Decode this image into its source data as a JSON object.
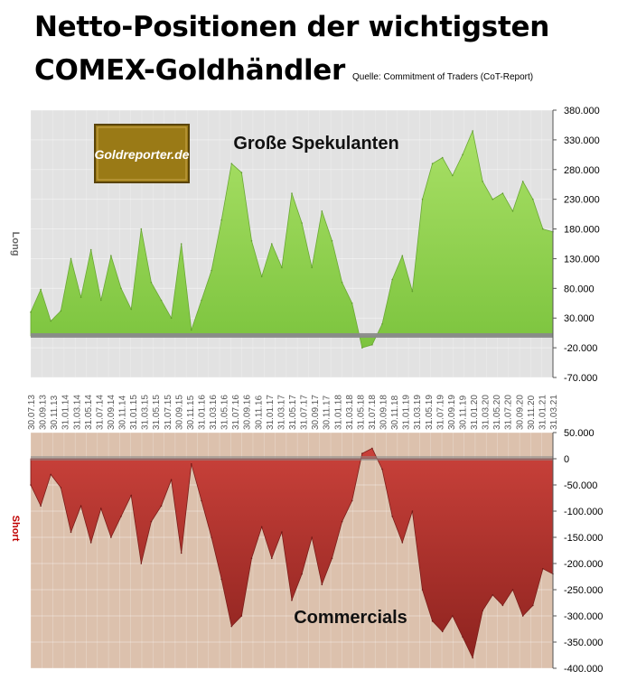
{
  "title_line1": "Netto-Positionen der wichtigsten",
  "title_line2": "COMEX-Goldhändler",
  "source": "Quelle: Commitment of Traders (CoT-Report)",
  "logo_text": "Goldreporter.de",
  "colors": {
    "top_background": "#e2e2e2",
    "bottom_background": "#dcc1ad",
    "long_fill": "#8fd14f",
    "short_fill": "#b8342f",
    "zero_band": "#8a8a8a",
    "logo_bg": "#9a7a16",
    "short_label": "#c00000",
    "long_label": "#666666"
  },
  "chart_data": [
    {
      "type": "area",
      "title": "Große Spekulanten",
      "ylabel": "Long",
      "ylim": [
        -70000,
        380000
      ],
      "yticks": [
        "380.000",
        "330.000",
        "280.000",
        "230.000",
        "180.000",
        "130.000",
        "80.000",
        "30.000",
        "-20.000",
        "-70.000"
      ],
      "x_tick_labels": [
        "30.07.13",
        "30.09.13",
        "30.11.13",
        "31.01.14",
        "31.03.14",
        "31.05.14",
        "31.07.14",
        "30.09.14",
        "30.11.14",
        "31.01.15",
        "31.03.15",
        "31.05.15",
        "31.07.15",
        "30.09.15",
        "30.11.15",
        "31.01.16",
        "31.03.16",
        "31.05.16",
        "31.07.16",
        "30.09.16",
        "30.11.16",
        "31.01.17",
        "31.03.17",
        "31.05.17",
        "31.07.17",
        "30.09.17",
        "30.11.17",
        "31.01.18",
        "31.03.18",
        "31.05.18",
        "31.07.18",
        "30.09.18",
        "30.11.18",
        "31.01.19",
        "31.03.19",
        "31.05.19",
        "31.07.19",
        "30.09.19",
        "30.11.19",
        "31.01.20",
        "31.03.20",
        "31.05.20",
        "31.07.20",
        "30.09.20",
        "30.11.20",
        "31.01.21",
        "31.03.21"
      ],
      "x": [
        "2013-07",
        "2013-09",
        "2013-10",
        "2013-12",
        "2014-02",
        "2014-03",
        "2014-05",
        "2014-06",
        "2014-08",
        "2014-10",
        "2014-11",
        "2015-01",
        "2015-03",
        "2015-05",
        "2015-07",
        "2015-09",
        "2015-10",
        "2015-12",
        "2016-02",
        "2016-04",
        "2016-05",
        "2016-07",
        "2016-09",
        "2016-11",
        "2017-01",
        "2017-03",
        "2017-04",
        "2017-06",
        "2017-08",
        "2017-10",
        "2017-12",
        "2018-02",
        "2018-04",
        "2018-06",
        "2018-08",
        "2018-09",
        "2018-11",
        "2019-01",
        "2019-03",
        "2019-04",
        "2019-06",
        "2019-08",
        "2019-10",
        "2019-12",
        "2020-02",
        "2020-04",
        "2020-06",
        "2020-08",
        "2020-09",
        "2020-11",
        "2021-01",
        "2021-03",
        "2021-04"
      ],
      "values": [
        40000,
        78000,
        25000,
        42000,
        130000,
        65000,
        145000,
        60000,
        135000,
        80000,
        45000,
        180000,
        90000,
        60000,
        30000,
        155000,
        10000,
        60000,
        110000,
        195000,
        290000,
        275000,
        160000,
        100000,
        155000,
        115000,
        240000,
        190000,
        115000,
        210000,
        160000,
        90000,
        55000,
        -20000,
        -15000,
        20000,
        95000,
        135000,
        75000,
        230000,
        290000,
        300000,
        270000,
        305000,
        345000,
        260000,
        230000,
        240000,
        210000,
        260000,
        230000,
        180000,
        175000
      ]
    },
    {
      "type": "area",
      "title": "Commercials",
      "ylabel": "Short",
      "ylim": [
        -400000,
        50000
      ],
      "yticks": [
        "50.000",
        "0",
        "-50.000",
        "-100.000",
        "-150.000",
        "-200.000",
        "-250.000",
        "-300.000",
        "-350.000",
        "-400.000"
      ],
      "x": [
        "2013-07",
        "2013-09",
        "2013-10",
        "2013-12",
        "2014-02",
        "2014-03",
        "2014-05",
        "2014-06",
        "2014-08",
        "2014-10",
        "2014-11",
        "2015-01",
        "2015-03",
        "2015-05",
        "2015-07",
        "2015-09",
        "2015-10",
        "2015-12",
        "2016-02",
        "2016-04",
        "2016-05",
        "2016-07",
        "2016-09",
        "2016-11",
        "2017-01",
        "2017-03",
        "2017-04",
        "2017-06",
        "2017-08",
        "2017-10",
        "2017-12",
        "2018-02",
        "2018-04",
        "2018-06",
        "2018-08",
        "2018-09",
        "2018-11",
        "2019-01",
        "2019-03",
        "2019-04",
        "2019-06",
        "2019-08",
        "2019-10",
        "2019-12",
        "2020-02",
        "2020-04",
        "2020-06",
        "2020-08",
        "2020-09",
        "2020-11",
        "2021-01",
        "2021-03",
        "2021-04"
      ],
      "values": [
        -50000,
        -90000,
        -30000,
        -55000,
        -140000,
        -90000,
        -160000,
        -95000,
        -150000,
        -110000,
        -70000,
        -200000,
        -120000,
        -90000,
        -40000,
        -180000,
        -10000,
        -80000,
        -150000,
        -230000,
        -320000,
        -300000,
        -190000,
        -130000,
        -190000,
        -140000,
        -270000,
        -220000,
        -150000,
        -240000,
        -190000,
        -120000,
        -80000,
        10000,
        20000,
        -20000,
        -110000,
        -160000,
        -100000,
        -250000,
        -310000,
        -330000,
        -300000,
        -340000,
        -380000,
        -290000,
        -260000,
        -280000,
        -250000,
        -300000,
        -280000,
        -210000,
        -220000
      ]
    }
  ]
}
